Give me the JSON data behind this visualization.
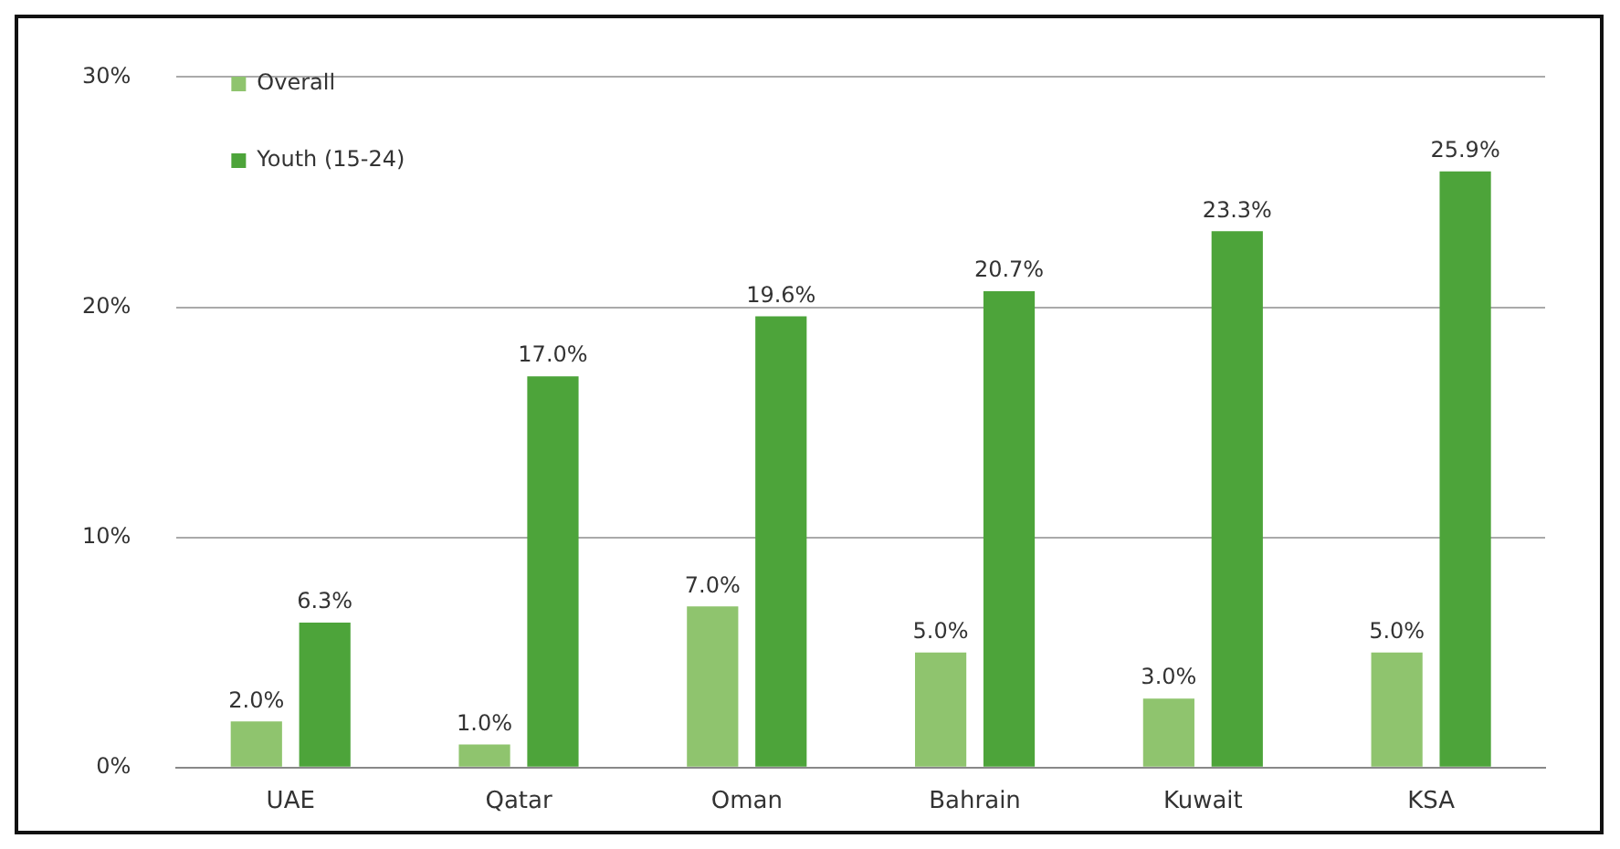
{
  "chart_data": {
    "type": "bar",
    "categories": [
      "UAE",
      "Qatar",
      "Oman",
      "Bahrain",
      "Kuwait",
      "KSA"
    ],
    "series": [
      {
        "name": "Overall",
        "color": "#8fc46e",
        "values": [
          2.0,
          1.0,
          7.0,
          5.0,
          3.0,
          5.0
        ],
        "value_labels": [
          "2.0%",
          "1.0%",
          "7.0%",
          "5.0%",
          "3.0%",
          "5.0%"
        ]
      },
      {
        "name": "Youth (15-24)",
        "color": "#4da43a",
        "values": [
          6.3,
          17.0,
          19.6,
          20.7,
          23.3,
          25.9
        ],
        "value_labels": [
          "6.3%",
          "17.0%",
          "19.6%",
          "20.7%",
          "23.3%",
          "25.9%"
        ]
      }
    ],
    "ylim": [
      0,
      30
    ],
    "yticks": [
      {
        "value": 0,
        "label": "0%"
      },
      {
        "value": 10,
        "label": "10%"
      },
      {
        "value": 20,
        "label": "20%"
      },
      {
        "value": 30,
        "label": "30%"
      }
    ],
    "grid": "y",
    "legend": "top left"
  }
}
